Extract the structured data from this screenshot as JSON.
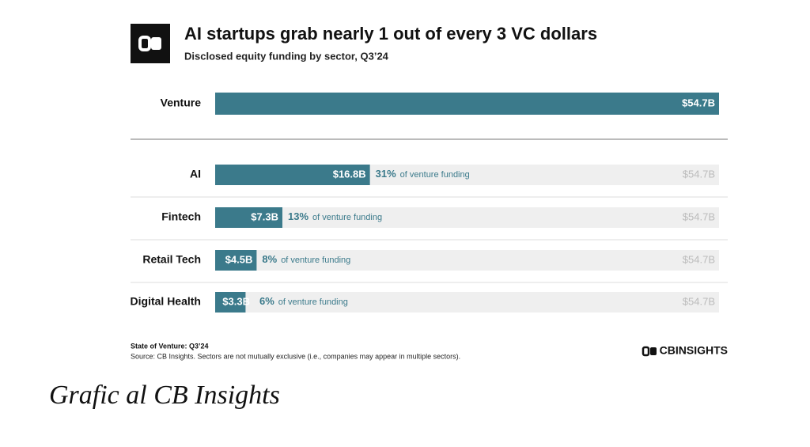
{
  "chart_data": {
    "type": "bar",
    "title": "AI startups grab nearly 1 out of every 3 VC dollars",
    "subtitle": "Disclosed equity funding by sector, Q3’24",
    "categories": [
      "Venture",
      "AI",
      "Fintech",
      "Retail Tech",
      "Digital Health"
    ],
    "values": [
      54.7,
      16.8,
      7.3,
      4.5,
      3.3
    ],
    "value_labels": [
      "$54.7B",
      "$16.8B",
      "$7.3B",
      "$4.5B",
      "$3.3B"
    ],
    "shares": [
      null,
      31,
      13,
      8,
      6
    ],
    "share_labels": [
      null,
      "31%",
      "13%",
      "8%",
      "6%"
    ],
    "share_text": "of venture funding",
    "total": 54.7,
    "total_label": "$54.7B",
    "xlim": [
      0,
      54.7
    ],
    "color": "#3b7a8b",
    "background_color": "#efefef",
    "footnote_title": "State of Venture: Q3’24",
    "source": "Source: CB Insights. Sectors are not mutually exclusive (i.e., companies may appear in multiple sectors).",
    "brand": "CBINSIGHTS"
  },
  "caption": "Grafic al CB Insights"
}
